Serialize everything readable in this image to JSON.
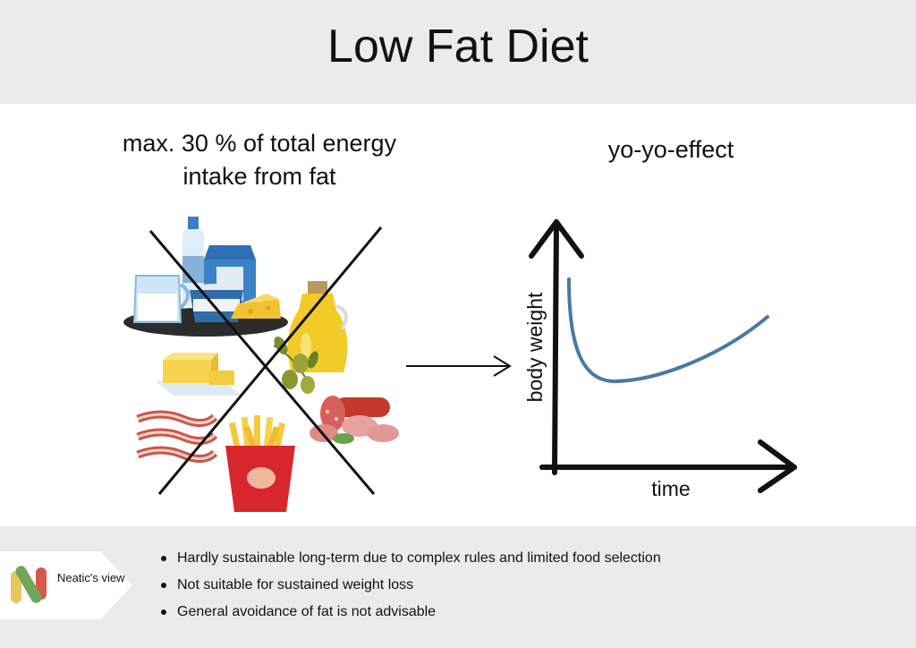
{
  "header": {
    "title": "Low Fat Diet"
  },
  "left_panel": {
    "rule_text": "max. 30 % of total energy intake from fat"
  },
  "chart": {
    "heading": "yo-yo-effect",
    "y_label": "body weight",
    "x_label": "time",
    "curve_color": "#4a78a3"
  },
  "footer": {
    "badge_label": "Neatic's view",
    "points": [
      "Hardly sustainable long-term due to complex rules and limited food selection",
      "Not suitable for sustained weight loss",
      "General avoidance of fat is not advisable"
    ]
  },
  "colors": {
    "band": "#ebebeb",
    "logo_red": "#d9574c",
    "logo_green": "#6fa657",
    "logo_yellow": "#e9c65a"
  },
  "icons": [
    "milk-bottle-icon",
    "milk-carton-icon",
    "milk-jug-icon",
    "yogurt-cup-icon",
    "cheese-icon",
    "oil-bottle-icon",
    "olives-icon",
    "butter-icon",
    "bacon-icon",
    "fries-icon",
    "salami-icon",
    "cross-out-icon",
    "arrow-right-icon",
    "neatic-logo-icon"
  ]
}
